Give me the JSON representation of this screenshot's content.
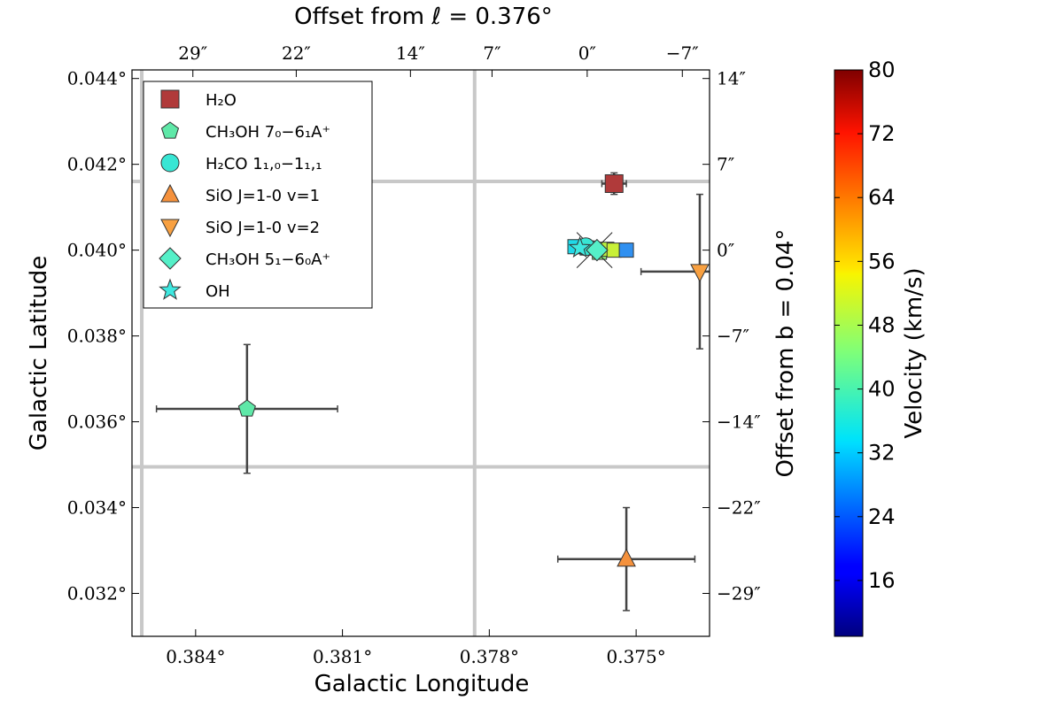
{
  "chart_data": {
    "type": "scatter",
    "title": "",
    "xlabel": "Galactic Longitude",
    "ylabel": "Galactic Latitude",
    "top_xlabel": "Offset from ℓ = 0.376°",
    "right_ylabel": "Offset from b = 0.04°",
    "xlim": [
      0.3853,
      0.3735
    ],
    "ylim": [
      0.031,
      0.0442
    ],
    "x_ticks": [
      0.384,
      0.381,
      0.378,
      0.375
    ],
    "x_tick_labels": [
      "0.384°",
      "0.381°",
      "0.378°",
      "0.375°"
    ],
    "y_ticks": [
      0.032,
      0.034,
      0.036,
      0.038,
      0.04,
      0.042,
      0.044
    ],
    "y_tick_labels": [
      "0.032°",
      "0.034°",
      "0.036°",
      "0.038°",
      "0.040°",
      "0.042°",
      "0.044°"
    ],
    "top_ticks": [
      0.384056,
      0.381944,
      0.379611,
      0.377944,
      0.376,
      0.374056
    ],
    "top_tick_labels": [
      "29″",
      "22″",
      "14″",
      "7″",
      "0″",
      "−7″"
    ],
    "right_ticks": [
      0.044,
      0.042,
      0.04,
      0.038,
      0.036,
      0.034,
      0.032
    ],
    "right_tick_labels": [
      "14″",
      "7″",
      "0″",
      "−7″",
      "−14″",
      "−22″",
      "−29″"
    ],
    "reference_lines": {
      "vertical": [
        0.3851,
        0.3783
      ],
      "horizontal": [
        0.0416,
        0.03495
      ]
    },
    "series": [
      {
        "name": "H₂O",
        "marker": "square",
        "color": "#b03a3a",
        "points": [
          {
            "x": 0.37545,
            "y": 0.04155,
            "xerr": 0.00025,
            "yerr": 0.00025,
            "velocity": 74
          }
        ]
      },
      {
        "name": "CH₃OH 7₀−6₁A⁺",
        "marker": "pentagon",
        "color": "#5fe8a8",
        "points": [
          {
            "x": 0.38295,
            "y": 0.0363,
            "xerr": 0.00185,
            "yerr": 0.0015,
            "velocity": 35
          }
        ]
      },
      {
        "name": "H₂CO 1₁,₀−1₁,₁",
        "marker": "circle",
        "color": "#38e6d4",
        "points": [
          {
            "x": 0.37603,
            "y": 0.04008,
            "xerr": 0.0,
            "yerr": 0.0,
            "velocity": 27
          }
        ]
      },
      {
        "name": "SiO J=1-0 v=1",
        "marker": "triangle-up",
        "color": "#f5913c",
        "points": [
          {
            "x": 0.3752,
            "y": 0.0328,
            "xerr": 0.0014,
            "yerr": 0.0012,
            "velocity": 60
          }
        ]
      },
      {
        "name": "SiO J=1-0 v=2",
        "marker": "triangle-down",
        "color": "#f8a040",
        "points": [
          {
            "x": 0.3737,
            "y": 0.0395,
            "xerr": 0.0012,
            "yerr": 0.0018,
            "velocity": 57
          }
        ]
      },
      {
        "name": "CH₃OH 5₁−6₀A⁺",
        "marker": "diamond",
        "color": "#55f0c8",
        "points": [
          {
            "x": 0.3758,
            "y": 0.04,
            "xerr": 0.0,
            "yerr": 0.0,
            "velocity": 30
          }
        ]
      },
      {
        "name": "OH",
        "marker": "star",
        "color": "#3ee8e0",
        "points": [
          {
            "x": 0.37615,
            "y": 0.04005,
            "xerr": 0.0,
            "yerr": 0.0,
            "velocity": 28
          }
        ]
      }
    ],
    "cluster_points": [
      {
        "x": 0.37625,
        "y": 0.04008,
        "color": "#20d8e8",
        "velocity": 25
      },
      {
        "x": 0.376,
        "y": 0.04005,
        "color": "#2ad0e0",
        "velocity": 26
      },
      {
        "x": 0.37575,
        "y": 0.03995,
        "color": "#90f078",
        "velocity": 39
      },
      {
        "x": 0.3756,
        "y": 0.04002,
        "color": "#b8f040",
        "velocity": 43
      },
      {
        "x": 0.37545,
        "y": 0.04,
        "color": "#c8f038",
        "velocity": 45
      },
      {
        "x": 0.3752,
        "y": 0.04,
        "color": "#3090f0",
        "velocity": 20
      }
    ],
    "legend_position": "top-left",
    "colorbar": {
      "label": "Velocity (km/s)",
      "min": 9,
      "max": 80,
      "ticks": [
        16,
        24,
        32,
        40,
        48,
        56,
        64,
        72,
        80
      ],
      "tick_labels": [
        "16",
        "24",
        "32",
        "40",
        "48",
        "56",
        "64",
        "72",
        "80"
      ],
      "colormap": "jet"
    }
  }
}
